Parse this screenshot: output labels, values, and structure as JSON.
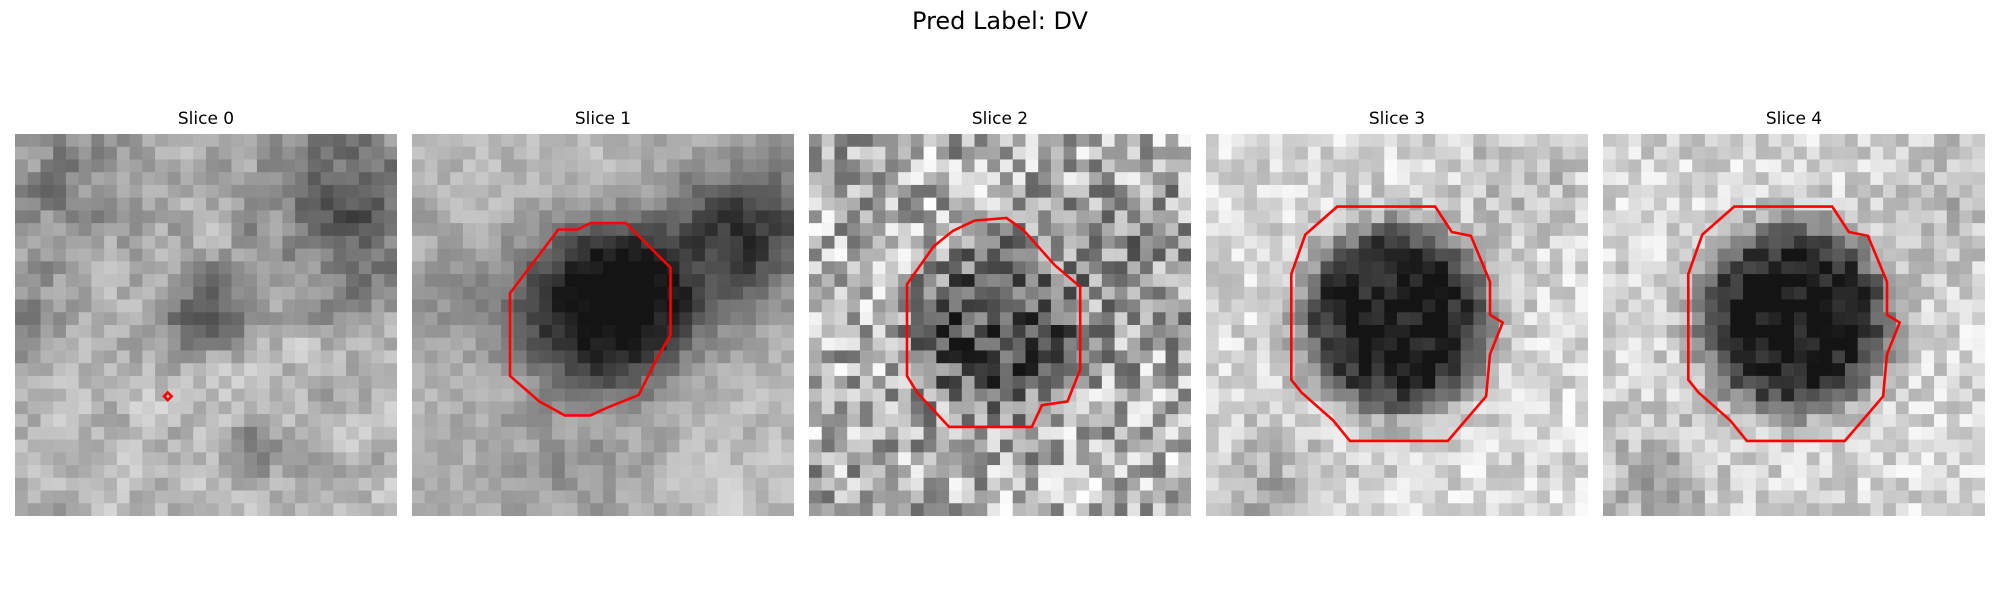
{
  "figure": {
    "title": "Pred Label: DV"
  },
  "panels": [
    {
      "title": "Slice 0"
    },
    {
      "title": "Slice 1"
    },
    {
      "title": "Slice 2"
    },
    {
      "title": "Slice 3"
    },
    {
      "title": "Slice 4"
    }
  ],
  "colors": {
    "contour": "#ff0000",
    "background": "#ffffff"
  }
}
